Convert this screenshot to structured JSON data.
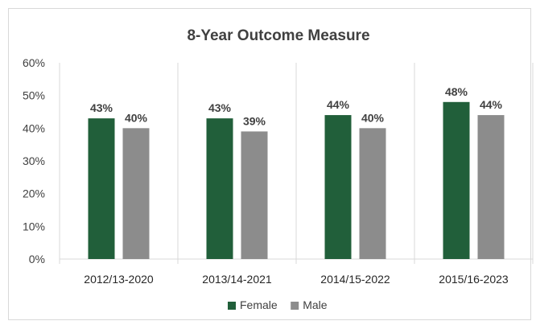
{
  "chart_data": {
    "type": "bar",
    "title": "8-Year Outcome Measure",
    "xlabel": "",
    "ylabel": "",
    "categories": [
      "2012/13-2020",
      "2013/14-2021",
      "2014/15-2022",
      "2015/16-2023"
    ],
    "series": [
      {
        "name": "Female",
        "values": [
          43,
          43,
          44,
          48
        ],
        "labels": [
          "43%",
          "43%",
          "44%",
          "48%"
        ],
        "color": "#215f3a"
      },
      {
        "name": "Male",
        "values": [
          40,
          39,
          40,
          44
        ],
        "labels": [
          "40%",
          "39%",
          "40%",
          "44%"
        ],
        "color": "#8c8c8c"
      }
    ],
    "ylim": [
      0,
      60
    ],
    "yticks": [
      0,
      10,
      20,
      30,
      40,
      50,
      60
    ],
    "ytick_labels": [
      "0%",
      "10%",
      "20%",
      "30%",
      "40%",
      "50%",
      "60%"
    ],
    "legend_position": "bottom",
    "grid": false,
    "category_separators": true
  }
}
